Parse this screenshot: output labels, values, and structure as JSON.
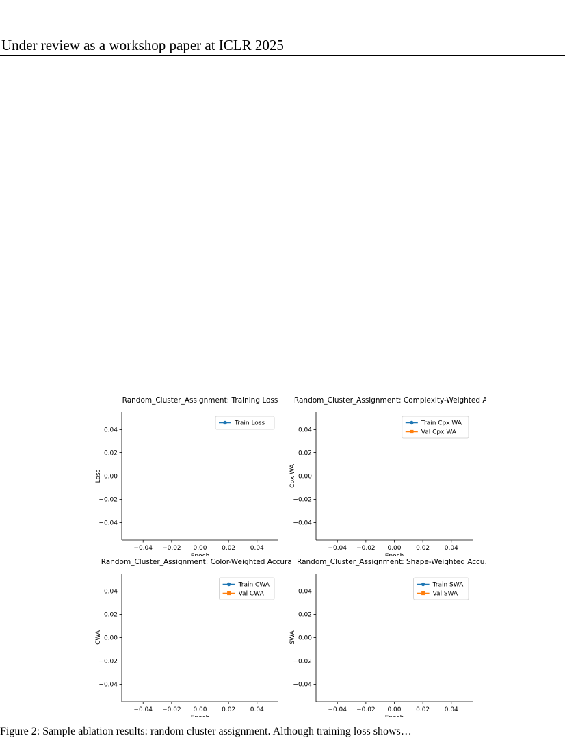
{
  "header": {
    "text": "Under review as a workshop paper at ICLR 2025"
  },
  "caption": {
    "text": "Figure 2: Sample ablation results: random cluster assignment. Although training loss shows…"
  },
  "chart_data": [
    {
      "type": "line",
      "title": "Random_Cluster_Assignment: Training Loss",
      "xlabel": "Epoch",
      "ylabel": "Loss",
      "xlim": [
        -0.055,
        0.055
      ],
      "ylim": [
        -0.055,
        0.055
      ],
      "xticks": [
        "−0.04",
        "−0.02",
        "0.00",
        "0.02",
        "0.04"
      ],
      "yticks": [
        "0.04",
        "0.02",
        "0.00",
        "−0.02",
        "−0.04"
      ],
      "legend_position": "upper right",
      "grid": false,
      "series": [
        {
          "name": "Train Loss",
          "color": "#1f77b4",
          "marker": "circle",
          "x": [],
          "y": []
        }
      ]
    },
    {
      "type": "line",
      "title": "Random_Cluster_Assignment: Complexity-Weighted A…",
      "xlabel": "Epoch",
      "ylabel": "Cpx WA",
      "xlim": [
        -0.055,
        0.055
      ],
      "ylim": [
        -0.055,
        0.055
      ],
      "xticks": [
        "−0.04",
        "−0.02",
        "0.00",
        "0.02",
        "0.04"
      ],
      "yticks": [
        "0.04",
        "0.02",
        "0.00",
        "−0.02",
        "−0.04"
      ],
      "legend_position": "upper right",
      "grid": false,
      "series": [
        {
          "name": "Train Cpx WA",
          "color": "#1f77b4",
          "marker": "circle",
          "x": [],
          "y": []
        },
        {
          "name": "Val Cpx WA",
          "color": "#ff7f0e",
          "marker": "square",
          "x": [],
          "y": []
        }
      ]
    },
    {
      "type": "line",
      "title": "Random_Cluster_Assignment: Color-Weighted Accura…",
      "xlabel": "Epoch",
      "ylabel": "CWA",
      "xlim": [
        -0.055,
        0.055
      ],
      "ylim": [
        -0.055,
        0.055
      ],
      "xticks": [
        "−0.04",
        "−0.02",
        "0.00",
        "0.02",
        "0.04"
      ],
      "yticks": [
        "0.04",
        "0.02",
        "0.00",
        "−0.02",
        "−0.04"
      ],
      "legend_position": "upper right",
      "grid": false,
      "series": [
        {
          "name": "Train CWA",
          "color": "#1f77b4",
          "marker": "circle",
          "x": [],
          "y": []
        },
        {
          "name": "Val CWA",
          "color": "#ff7f0e",
          "marker": "square",
          "x": [],
          "y": []
        }
      ]
    },
    {
      "type": "line",
      "title": "Random_Cluster_Assignment: Shape-Weighted Accu…",
      "xlabel": "Epoch",
      "ylabel": "SWA",
      "xlim": [
        -0.055,
        0.055
      ],
      "ylim": [
        -0.055,
        0.055
      ],
      "xticks": [
        "−0.04",
        "−0.02",
        "0.00",
        "0.02",
        "0.04"
      ],
      "yticks": [
        "0.04",
        "0.02",
        "0.00",
        "−0.02",
        "−0.04"
      ],
      "legend_position": "upper right",
      "grid": false,
      "series": [
        {
          "name": "Train SWA",
          "color": "#1f77b4",
          "marker": "circle",
          "x": [],
          "y": []
        },
        {
          "name": "Val SWA",
          "color": "#ff7f0e",
          "marker": "square",
          "x": [],
          "y": []
        }
      ]
    }
  ]
}
